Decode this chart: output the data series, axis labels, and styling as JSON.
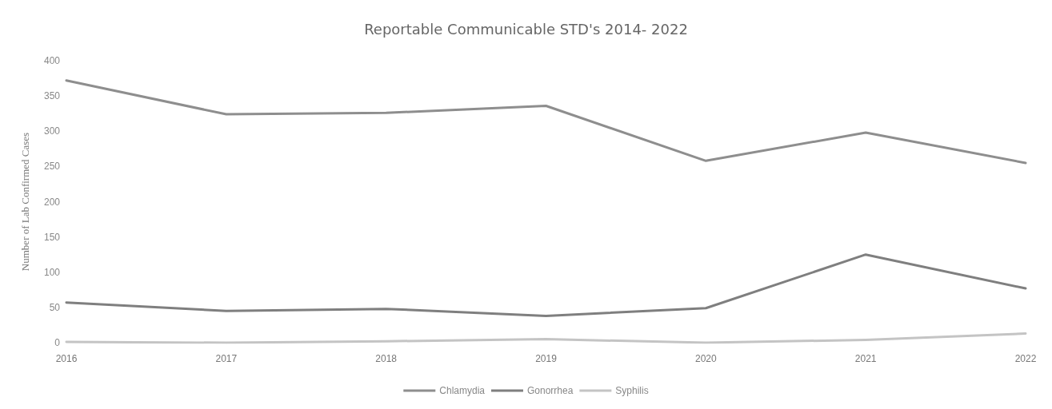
{
  "chart_data": {
    "type": "line",
    "title": "Reportable Communicable STD's 2014- 2022",
    "ylabel": "Number of Lab Confirmed Cases",
    "categories": [
      "2016",
      "2017",
      "2018",
      "2019",
      "2020",
      "2021",
      "2022"
    ],
    "series": [
      {
        "name": "Chlamydia",
        "color": "#8e8e8e",
        "values": [
          372,
          324,
          326,
          336,
          258,
          298,
          255
        ]
      },
      {
        "name": "Gonorrhea",
        "color": "#7f7f7f",
        "values": [
          57,
          45,
          48,
          38,
          49,
          125,
          77
        ]
      },
      {
        "name": "Syphilis",
        "color": "#c4c4c4",
        "values": [
          1,
          0,
          2,
          5,
          0,
          4,
          13
        ]
      }
    ],
    "ylim": [
      0,
      400
    ],
    "yticks": [
      0,
      50,
      100,
      150,
      200,
      250,
      300,
      350,
      400
    ],
    "grid": false,
    "legend": "bottom",
    "marker": "none",
    "line_style": "solid"
  }
}
